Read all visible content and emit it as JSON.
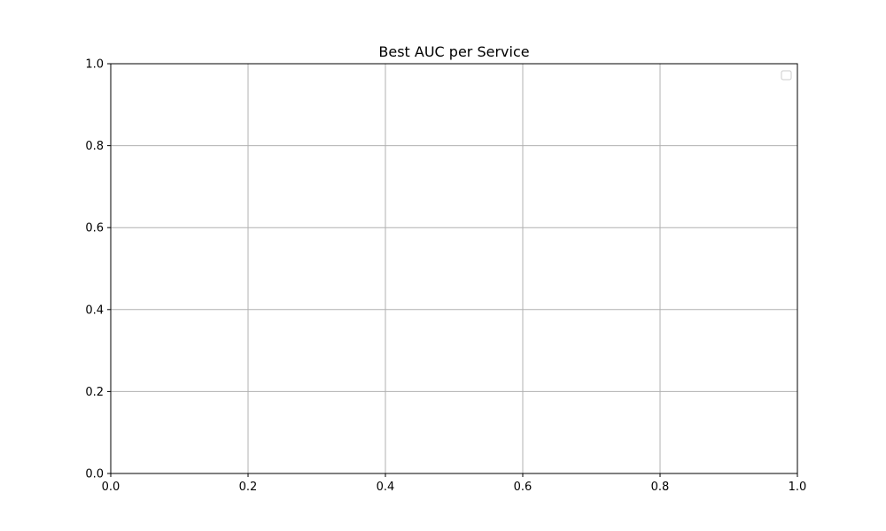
{
  "chart_data": {
    "type": "line",
    "title": "Best AUC per Service",
    "xlabel": "",
    "ylabel": "",
    "xlim": [
      0,
      1
    ],
    "ylim": [
      0,
      1
    ],
    "x_ticks": [
      "0.0",
      "0.2",
      "0.4",
      "0.6",
      "0.8",
      "1.0"
    ],
    "y_ticks": [
      "0.0",
      "0.2",
      "0.4",
      "0.6",
      "0.8",
      "1.0"
    ],
    "series": [],
    "grid": true,
    "legend": {
      "position": "top-right",
      "entries": []
    }
  }
}
